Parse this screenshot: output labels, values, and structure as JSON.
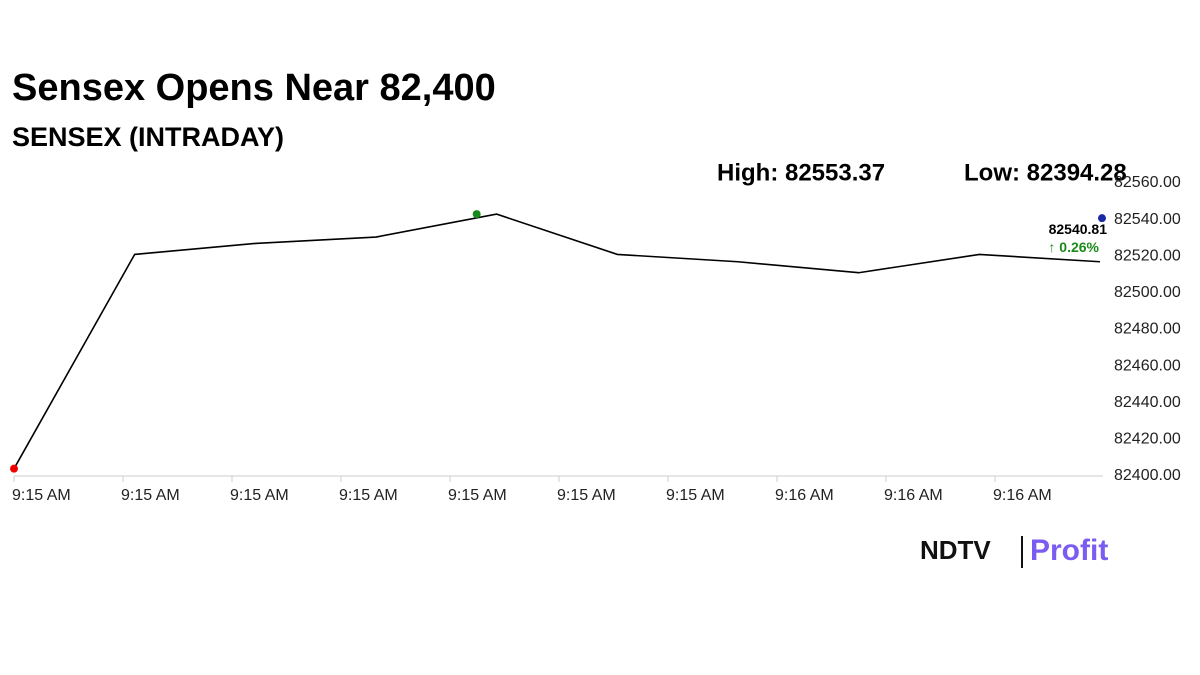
{
  "chart_data": {
    "type": "line",
    "title": "Sensex Opens Near 82,400",
    "subtitle": "SENSEX (INTRADAY)",
    "high_label": "High: 82553.37",
    "low_label": "Low: 82394.28",
    "last_value": 82540.81,
    "change_label": "↑ 0.26%",
    "categories": [
      "9:15 AM",
      "9:15 AM",
      "9:15 AM",
      "9:15 AM",
      "9:15 AM",
      "9:15 AM",
      "9:15 AM",
      "9:16 AM",
      "9:16 AM",
      "9:16 AM"
    ],
    "series": [
      {
        "name": "SENSEX",
        "color": "#000000",
        "values": [
          82404,
          82521,
          82527,
          82530.5,
          82543,
          82521,
          82517,
          82511,
          82521,
          82517
        ]
      }
    ],
    "ylim": [
      82400,
      82560
    ],
    "yticks": [
      {
        "value": 82400,
        "label": "82400.00"
      },
      {
        "value": 82420,
        "label": "82420.00"
      },
      {
        "value": 82440,
        "label": "82440.00"
      },
      {
        "value": 82460,
        "label": "82460.00"
      },
      {
        "value": 82480,
        "label": "82480.00"
      },
      {
        "value": 82500,
        "label": "82500.00"
      },
      {
        "value": 82520,
        "label": "82520.00"
      },
      {
        "value": 82540,
        "label": "82540.00"
      },
      {
        "value": 82560,
        "label": "82560.00"
      }
    ],
    "grid": false,
    "logo": {
      "left": "NDTV",
      "right": "Profit"
    }
  }
}
